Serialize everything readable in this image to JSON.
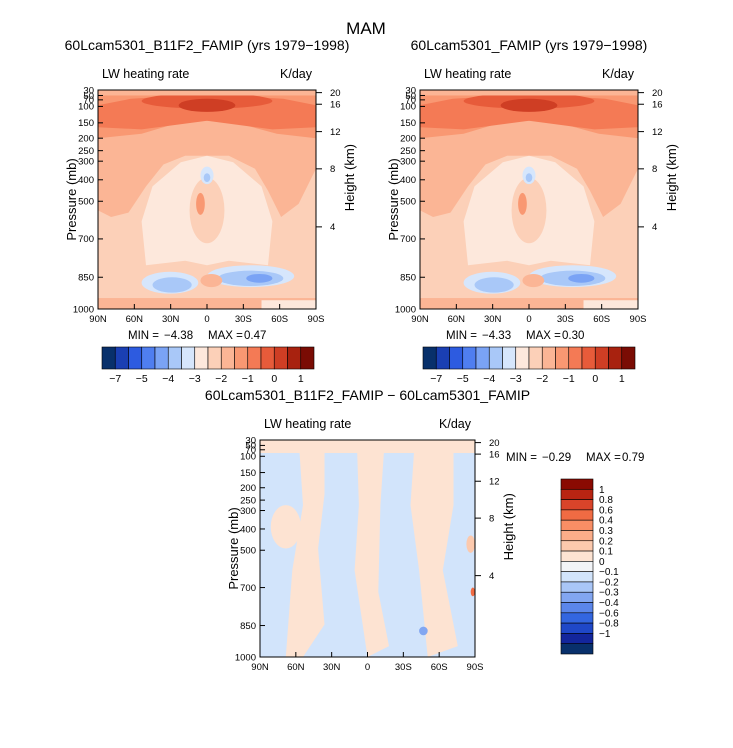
{
  "figure_title": "MAM",
  "colors": {
    "main_scale": [
      "#08306b",
      "#1a3fb3",
      "#2d5be0",
      "#4f7ef0",
      "#7aa3f5",
      "#a9c8f8",
      "#d6e6fc",
      "#fde8dc",
      "#fcd0b8",
      "#fbb595",
      "#f99872",
      "#f47a55",
      "#e75b3a",
      "#cf3e24",
      "#a8220f",
      "#7a0c04"
    ],
    "diff_scale": [
      "#08306b",
      "#13269c",
      "#1f48c8",
      "#3366e0",
      "#5b86ea",
      "#82a6f1",
      "#a9c6f7",
      "#d2e4fb",
      "#f2f4f7",
      "#fde3d2",
      "#fcc9ad",
      "#fbad89",
      "#f98e65",
      "#f06b43",
      "#d9442a",
      "#b82412",
      "#8a0a02"
    ]
  },
  "chart_data": [
    {
      "type": "heatmap",
      "panel": "left",
      "title": "60Lcam5301_B11F2_FAMIP (yrs 1979−1998)",
      "variable": "LW heating rate",
      "units": "K/day",
      "xlabel": "",
      "ylabel": "Pressure (mb)",
      "ylabel_right": "Height (km)",
      "xticks": [
        "90N",
        "60N",
        "30N",
        "0",
        "30S",
        "60S",
        "90S"
      ],
      "yticks": [
        "30",
        "50",
        "70",
        "100",
        "150",
        "200",
        "250",
        "300",
        "400",
        "500",
        "700",
        "850",
        "1000"
      ],
      "yticks_right": [
        "20",
        "16",
        "12",
        "8",
        "4"
      ],
      "ylim": [
        1000,
        30
      ],
      "min_label": "MIN =",
      "min": "−4.38",
      "max_label": "MAX =",
      "max": "0.47",
      "colorbar_labels": [
        "−7",
        "−5",
        "−4",
        "−3",
        "−2",
        "−1",
        "0",
        "1"
      ]
    },
    {
      "type": "heatmap",
      "panel": "right",
      "title": "60Lcam5301_FAMIP (yrs 1979−1998)",
      "variable": "LW heating rate",
      "units": "K/day",
      "xlabel": "",
      "ylabel": "Pressure (mb)",
      "ylabel_right": "Height (km)",
      "xticks": [
        "90N",
        "60N",
        "30N",
        "0",
        "30S",
        "60S",
        "90S"
      ],
      "yticks": [
        "30",
        "50",
        "70",
        "100",
        "150",
        "200",
        "250",
        "300",
        "400",
        "500",
        "700",
        "850",
        "1000"
      ],
      "yticks_right": [
        "20",
        "16",
        "12",
        "8",
        "4"
      ],
      "ylim": [
        1000,
        30
      ],
      "min_label": "MIN =",
      "min": "−4.33",
      "max_label": "MAX =",
      "max": "0.30",
      "colorbar_labels": [
        "−7",
        "−5",
        "−4",
        "−3",
        "−2",
        "−1",
        "0",
        "1"
      ]
    },
    {
      "type": "heatmap",
      "panel": "difference",
      "title": "60Lcam5301_B11F2_FAMIP − 60Lcam5301_FAMIP",
      "variable": "LW heating rate",
      "units": "K/day",
      "xlabel": "",
      "ylabel": "Pressure (mb)",
      "ylabel_right": "Height (km)",
      "xticks": [
        "90N",
        "60N",
        "30N",
        "0",
        "30S",
        "60S",
        "90S"
      ],
      "yticks": [
        "30",
        "50",
        "70",
        "100",
        "150",
        "200",
        "250",
        "300",
        "400",
        "500",
        "700",
        "850",
        "1000"
      ],
      "yticks_right": [
        "20",
        "16",
        "12",
        "8",
        "4"
      ],
      "ylim": [
        1000,
        30
      ],
      "min_label": "MIN =",
      "min": "−0.29",
      "max_label": "MAX =",
      "max": "0.79",
      "colorbar_labels": [
        "1",
        "0.8",
        "0.6",
        "0.4",
        "0.3",
        "0.2",
        "0.1",
        "0",
        "−0.1",
        "−0.2",
        "−0.3",
        "−0.4",
        "−0.6",
        "−0.8",
        "−1"
      ]
    }
  ]
}
